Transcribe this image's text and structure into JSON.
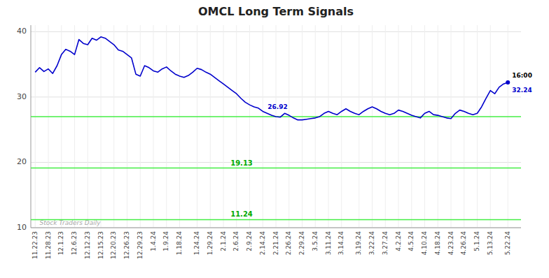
{
  "chart_data": {
    "type": "line",
    "title": "OMCL Long Term Signals",
    "categories": [
      "11.22.23",
      null,
      null,
      "11.28.23",
      null,
      null,
      "12.1.23",
      null,
      null,
      "12.6.23",
      null,
      null,
      "12.12.23",
      null,
      null,
      "12.15.23",
      null,
      null,
      "12.20.23",
      null,
      null,
      "12.26.23",
      null,
      null,
      "12.29.23",
      null,
      null,
      "1.4.24",
      null,
      null,
      "1.9.24",
      null,
      null,
      "1.18.24",
      null,
      null,
      null,
      "1.24.24",
      null,
      null,
      "1.29.24",
      null,
      null,
      "2.1.24",
      null,
      null,
      "2.6.24",
      null,
      null,
      "2.9.24",
      null,
      null,
      "2.14.24",
      null,
      null,
      "2.21.24",
      null,
      null,
      "2.26.24",
      null,
      null,
      "2.29.24",
      null,
      null,
      "3.5.24",
      null,
      null,
      "3.11.24",
      null,
      null,
      "3.14.24",
      null,
      null,
      null,
      "3.19.24",
      null,
      null,
      "3.22.24",
      null,
      null,
      "3.27.24",
      null,
      null,
      "4.2.24",
      null,
      null,
      "4.5.24",
      null,
      null,
      "4.10.24",
      null,
      null,
      "4.18.24",
      null,
      null,
      "4.23.24",
      null,
      null,
      "4.26.24",
      null,
      null,
      "5.1.24",
      null,
      null,
      "5.13.24",
      null,
      null,
      null,
      "5.22.24"
    ],
    "values": [
      33.8,
      34.5,
      33.9,
      34.3,
      33.6,
      34.8,
      36.5,
      37.3,
      37.0,
      36.5,
      38.8,
      38.2,
      38.0,
      39.0,
      38.7,
      39.2,
      39.0,
      38.5,
      38.0,
      37.2,
      37.0,
      36.5,
      36.0,
      33.5,
      33.2,
      34.8,
      34.5,
      34.0,
      33.8,
      34.3,
      34.6,
      34.0,
      33.5,
      33.2,
      33.0,
      33.3,
      33.8,
      34.4,
      34.2,
      33.8,
      33.5,
      33.0,
      32.5,
      32.0,
      31.5,
      31.0,
      30.5,
      29.8,
      29.2,
      28.8,
      28.5,
      28.3,
      27.8,
      27.5,
      27.2,
      27.0,
      26.92,
      27.5,
      27.2,
      26.8,
      26.5,
      26.5,
      26.6,
      26.7,
      26.8,
      27.0,
      27.5,
      27.8,
      27.5,
      27.3,
      27.8,
      28.2,
      27.8,
      27.5,
      27.3,
      27.8,
      28.2,
      28.5,
      28.2,
      27.8,
      27.5,
      27.3,
      27.5,
      28.0,
      27.8,
      27.5,
      27.2,
      27.0,
      26.8,
      27.5,
      27.8,
      27.3,
      27.2,
      27.0,
      26.8,
      26.7,
      27.5,
      28.0,
      27.8,
      27.5,
      27.3,
      27.5,
      28.5,
      29.8,
      31.0,
      30.5,
      31.5,
      32.0,
      32.24
    ],
    "color": "#0000cc",
    "reference_lines": [
      {
        "value": 27.0,
        "color": "#44ee44"
      },
      {
        "value": 19.13,
        "label": "19.13",
        "color": "#44ee44"
      },
      {
        "value": 11.24,
        "label": "11.24",
        "color": "#44ee44"
      }
    ],
    "annotations": [
      {
        "text": "26.92",
        "index": 56
      }
    ],
    "endpoint_labels": [
      "16:00",
      "32.24"
    ],
    "watermark": "Stock Traders Daily",
    "ylim": [
      10,
      41
    ],
    "yticks": [
      10,
      20,
      30,
      40
    ],
    "grid": true
  }
}
